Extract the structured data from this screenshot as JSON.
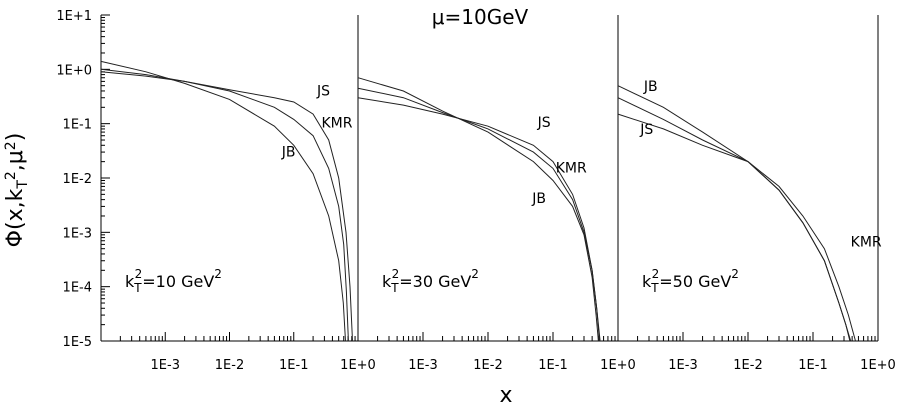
{
  "chart_data": {
    "type": "line",
    "title": "μ=10GeV",
    "xlabel": "x",
    "ylabel": "Φ(x,k_T²,μ²)",
    "x_scale": "log",
    "y_scale": "log",
    "ylim": [
      1e-05,
      10
    ],
    "y_ticks": [
      "1E-5",
      "1E-4",
      "1E-3",
      "1E-2",
      "1E-1",
      "1E+0",
      "1E+1"
    ],
    "panels": [
      {
        "id": "panel-1",
        "kt2_label": "k_T²=10 GeV²",
        "kt2_parts": {
          "k": "k",
          "sub": "T",
          "sup": "2",
          "value": "=10 GeV",
          "unit_sup": "2"
        },
        "xlim": [
          0.0001,
          1
        ],
        "x_ticks": [
          "1E-3",
          "1E-2",
          "1E-1",
          "1E+0"
        ],
        "series": [
          {
            "name": "JS",
            "x": [
              0.0001,
              0.0005,
              0.002,
              0.01,
              0.05,
              0.1,
              0.2,
              0.35,
              0.5,
              0.65,
              0.75,
              0.82
            ],
            "y": [
              1.0,
              0.8,
              0.6,
              0.42,
              0.3,
              0.25,
              0.15,
              0.05,
              0.01,
              0.001,
              0.0001,
              1e-05
            ]
          },
          {
            "name": "KMR",
            "x": [
              0.0001,
              0.0005,
              0.002,
              0.01,
              0.05,
              0.1,
              0.2,
              0.35,
              0.5,
              0.6,
              0.66,
              0.71
            ],
            "y": [
              0.9,
              0.75,
              0.6,
              0.4,
              0.2,
              0.12,
              0.06,
              0.015,
              0.003,
              0.0006,
              8e-05,
              1e-05
            ]
          },
          {
            "name": "JB",
            "x": [
              0.0001,
              0.0005,
              0.002,
              0.01,
              0.05,
              0.1,
              0.2,
              0.35,
              0.5,
              0.59,
              0.64
            ],
            "y": [
              1.4,
              0.9,
              0.55,
              0.28,
              0.09,
              0.04,
              0.012,
              0.002,
              0.0003,
              5e-05,
              1e-05
            ]
          }
        ],
        "label_names": [
          "JS",
          "KMR",
          "JB"
        ]
      },
      {
        "id": "panel-2",
        "kt2_label": "k_T²=30 GeV²",
        "kt2_parts": {
          "k": "k",
          "sub": "T",
          "sup": "2",
          "value": "=30 GeV",
          "unit_sup": "2"
        },
        "xlim": [
          0.0001,
          1
        ],
        "x_ticks": [
          "1E-3",
          "1E-2",
          "1E-1",
          "1E+0"
        ],
        "series": [
          {
            "name": "JS",
            "x": [
              0.0001,
              0.0005,
              0.002,
              0.01,
              0.05,
              0.1,
              0.2,
              0.3,
              0.4,
              0.47,
              0.52
            ],
            "y": [
              0.3,
              0.22,
              0.15,
              0.09,
              0.04,
              0.02,
              0.005,
              0.0012,
              0.0002,
              4e-05,
              1e-05
            ]
          },
          {
            "name": "KMR",
            "x": [
              0.0001,
              0.0005,
              0.002,
              0.01,
              0.05,
              0.1,
              0.2,
              0.3,
              0.4,
              0.47,
              0.53
            ],
            "y": [
              0.45,
              0.3,
              0.16,
              0.08,
              0.03,
              0.015,
              0.004,
              0.001,
              0.0002,
              4e-05,
              1e-05
            ]
          },
          {
            "name": "JB",
            "x": [
              0.0001,
              0.0005,
              0.002,
              0.01,
              0.05,
              0.1,
              0.2,
              0.3,
              0.4,
              0.46,
              0.5
            ],
            "y": [
              0.7,
              0.4,
              0.17,
              0.07,
              0.02,
              0.009,
              0.003,
              0.0009,
              0.00015,
              3e-05,
              1e-05
            ]
          }
        ],
        "label_names": [
          "JS",
          "KMR",
          "JB"
        ]
      },
      {
        "id": "panel-3",
        "kt2_label": "k_T²=50 GeV²",
        "kt2_parts": {
          "k": "k",
          "sub": "T",
          "sup": "2",
          "value": "=50 GeV",
          "unit_sup": "2"
        },
        "xlim": [
          0.0001,
          1
        ],
        "x_ticks": [
          "1E-3",
          "1E-2",
          "1E-1",
          "1E+0"
        ],
        "series": [
          {
            "name": "JB",
            "x": [
              0.0001,
              0.0005,
              0.002,
              0.01,
              0.03,
              0.07,
              0.15,
              0.25,
              0.32,
              0.38
            ],
            "y": [
              0.5,
              0.2,
              0.07,
              0.02,
              0.006,
              0.0015,
              0.0003,
              5e-05,
              2e-05,
              1e-05
            ]
          },
          {
            "name": "JS",
            "x": [
              0.0001,
              0.0005,
              0.002,
              0.01,
              0.03,
              0.07,
              0.15,
              0.25,
              0.32,
              0.37
            ],
            "y": [
              0.15,
              0.08,
              0.04,
              0.02,
              0.006,
              0.0015,
              0.0003,
              5e-05,
              2e-05,
              1e-05
            ]
          },
          {
            "name": "KMR",
            "x": [
              0.0001,
              0.0005,
              0.002,
              0.01,
              0.03,
              0.07,
              0.15,
              0.25,
              0.35,
              0.45
            ],
            "y": [
              0.3,
              0.12,
              0.05,
              0.02,
              0.007,
              0.002,
              0.0005,
              0.0001,
              3e-05,
              1e-05
            ]
          }
        ],
        "label_names": [
          "JB",
          "JS",
          "KMR"
        ]
      }
    ]
  }
}
